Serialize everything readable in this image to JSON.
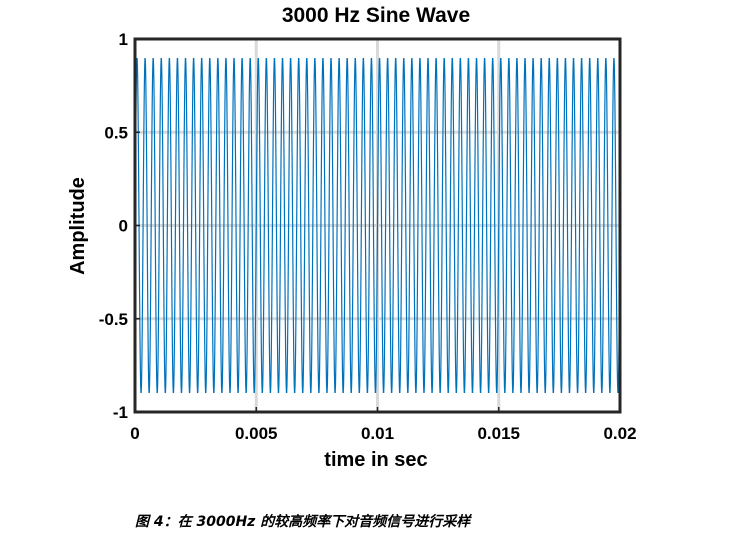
{
  "chart_data": {
    "type": "line",
    "title": "3000 Hz Sine Wave",
    "xlabel": "time in sec",
    "ylabel": "Amplitude",
    "xlim": [
      0,
      0.02
    ],
    "ylim": [
      -1,
      1
    ],
    "xticks": [
      "0",
      "0.005",
      "0.01",
      "0.015",
      "0.02"
    ],
    "xtick_values": [
      0,
      0.005,
      0.01,
      0.015,
      0.02
    ],
    "yticks": [
      "1",
      "0.5",
      "0",
      "-0.5",
      "-1"
    ],
    "ytick_values": [
      1,
      0.5,
      0,
      -0.5,
      -1
    ],
    "grid": true,
    "series": [
      {
        "frequency_hz": 3000,
        "amplitude": 0.9,
        "color": "#0072BD"
      }
    ]
  },
  "caption": "图 4：在 3000Hz 的较高频率下对音频信号进行采样"
}
